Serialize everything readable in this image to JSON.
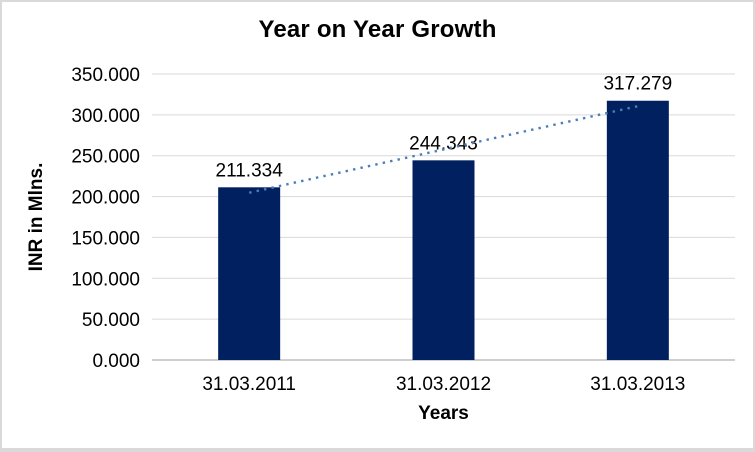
{
  "chart_data": {
    "type": "bar",
    "title": "Year on Year Growth",
    "xlabel": "Years",
    "ylabel": "INR in Mlns.",
    "categories": [
      "31.03.2011",
      "31.03.2012",
      "31.03.2013"
    ],
    "values": [
      211.334,
      244.343,
      317.279
    ],
    "data_labels": [
      "211.334",
      "244.343",
      "317.279"
    ],
    "ylim": [
      0,
      350
    ],
    "ytick_labels": [
      "0.000",
      "50.000",
      "100.000",
      "150.000",
      "200.000",
      "250.000",
      "300.000",
      "350.000"
    ],
    "grid": true,
    "legend": "none",
    "trendline": {
      "type": "linear",
      "style": "dotted",
      "color": "#4A7EBB"
    },
    "colors": {
      "bar": "#002060",
      "gridline": "#D9D9D9",
      "axis_line": "#BFBFBF",
      "text": "#000000",
      "background": "#FFFFFF",
      "frame_border": "#D9D9D9"
    }
  }
}
